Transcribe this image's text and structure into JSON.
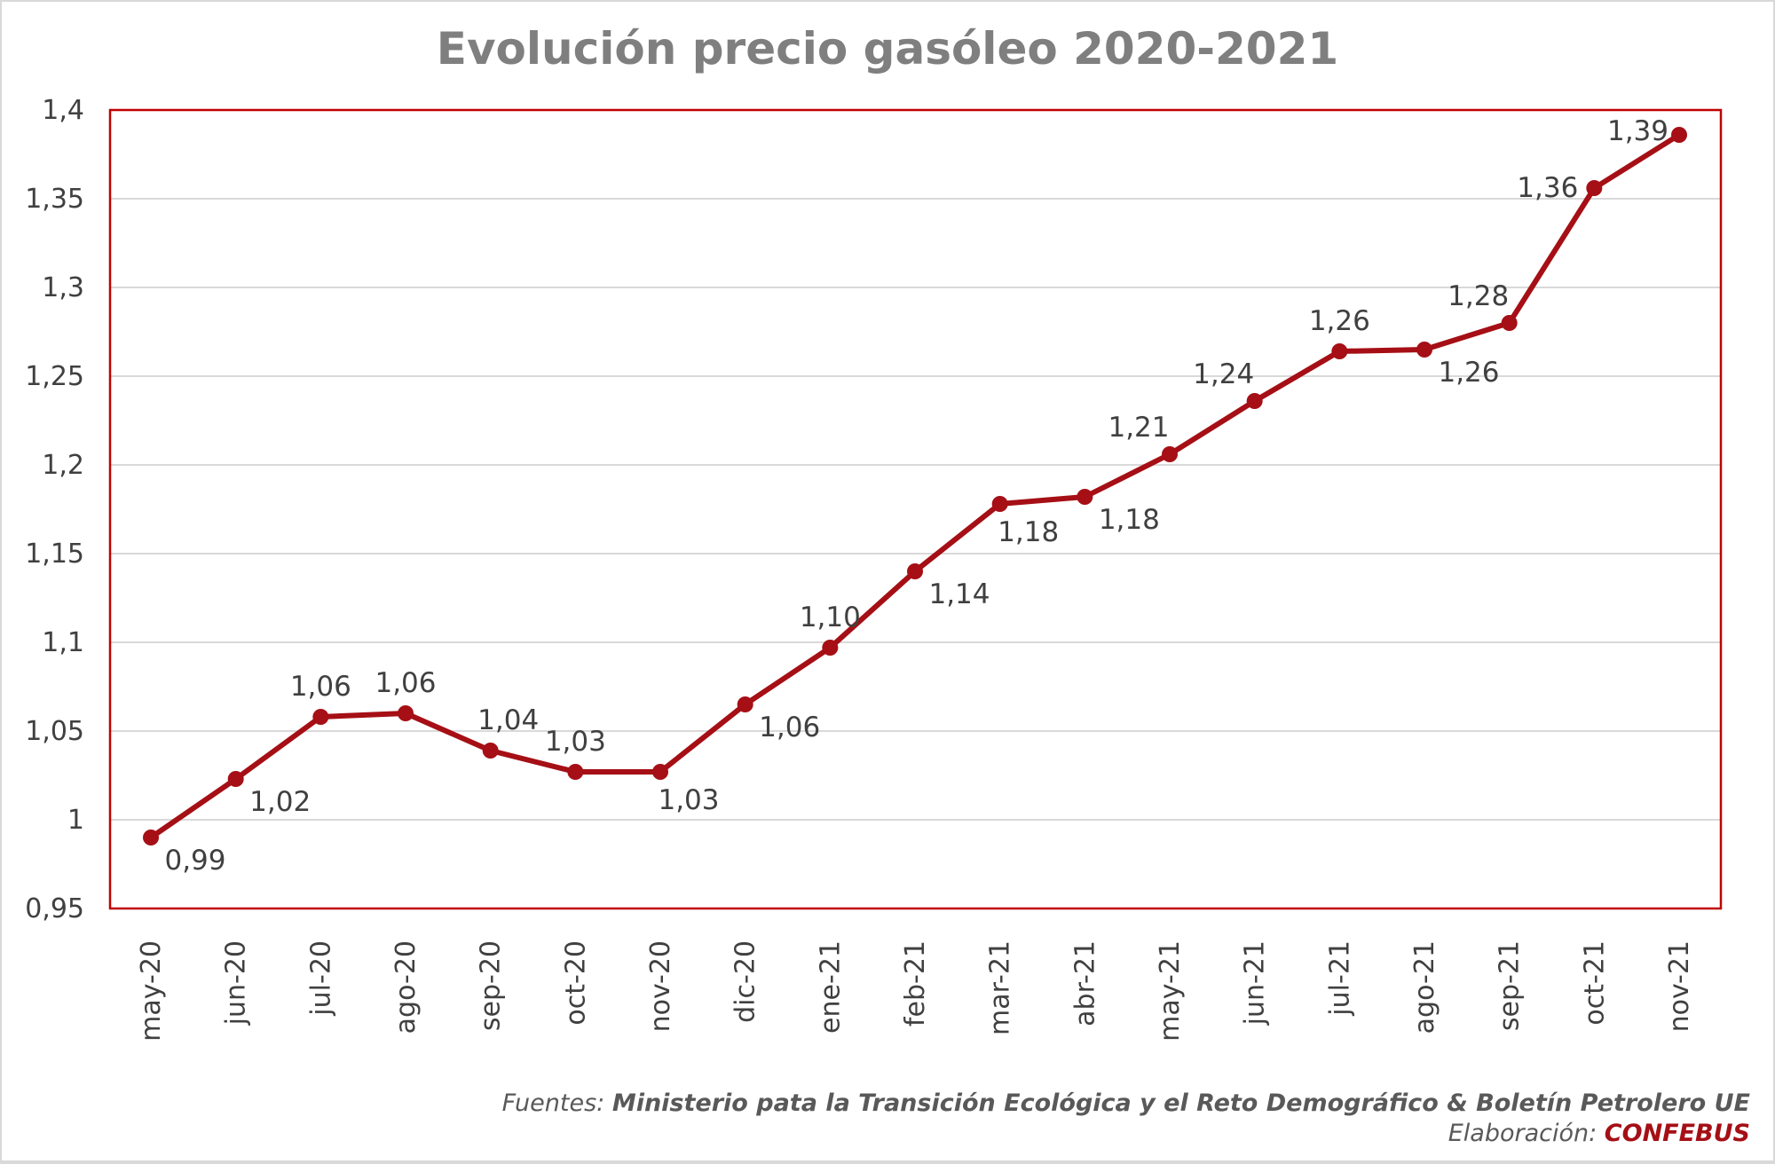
{
  "chart_data": {
    "type": "line",
    "title": "Evolución precio gasóleo 2020-2021",
    "xlabel": "",
    "ylabel": "",
    "ylim": [
      0.95,
      1.4
    ],
    "yticks": [
      "0,95",
      "1",
      "1,05",
      "1,1",
      "1,15",
      "1,2",
      "1,25",
      "1,3",
      "1,35",
      "1,4"
    ],
    "yticks_values": [
      0.95,
      1,
      1.05,
      1.1,
      1.15,
      1.2,
      1.25,
      1.3,
      1.35,
      1.4
    ],
    "grid": true,
    "categories": [
      "may-20",
      "jun-20",
      "jul-20",
      "ago-20",
      "sep-20",
      "oct-20",
      "nov-20",
      "dic-20",
      "ene-21",
      "feb-21",
      "mar-21",
      "abr-21",
      "may-21",
      "jun-21",
      "jul-21",
      "ago-21",
      "sep-21",
      "oct-21",
      "nov-21"
    ],
    "series": [
      {
        "name": "Precio gasóleo",
        "color": "#a50f15",
        "values": [
          0.99,
          1.023,
          1.058,
          1.06,
          1.039,
          1.027,
          1.027,
          1.065,
          1.097,
          1.14,
          1.178,
          1.182,
          1.206,
          1.236,
          1.264,
          1.265,
          1.28,
          1.356,
          1.386
        ],
        "labels": [
          "0,99",
          "1,02",
          "1,06",
          "1,06",
          "1,04",
          "1,03",
          "1,03",
          "1,06",
          "1,10",
          "1,14",
          "1,18",
          "1,18",
          "1,21",
          "1,24",
          "1,26",
          "1,26",
          "1,28",
          "1,36",
          "1,39"
        ],
        "label_positions": [
          "below-right",
          "below-right",
          "above",
          "above",
          "above-right",
          "above",
          "below",
          "below-right",
          "above",
          "below-right",
          "below",
          "below-right",
          "above-left",
          "above-left",
          "above",
          "below-right",
          "above-left",
          "left",
          "left"
        ]
      }
    ]
  },
  "footer": {
    "sources_label": "Fuentes: ",
    "sources_text": "Ministerio pata la Transición Ecológica y el Reto Demográfico & Boletín Petrolero UE",
    "credit_label": "Elaboración: ",
    "credit_text": "CONFEBUS"
  }
}
